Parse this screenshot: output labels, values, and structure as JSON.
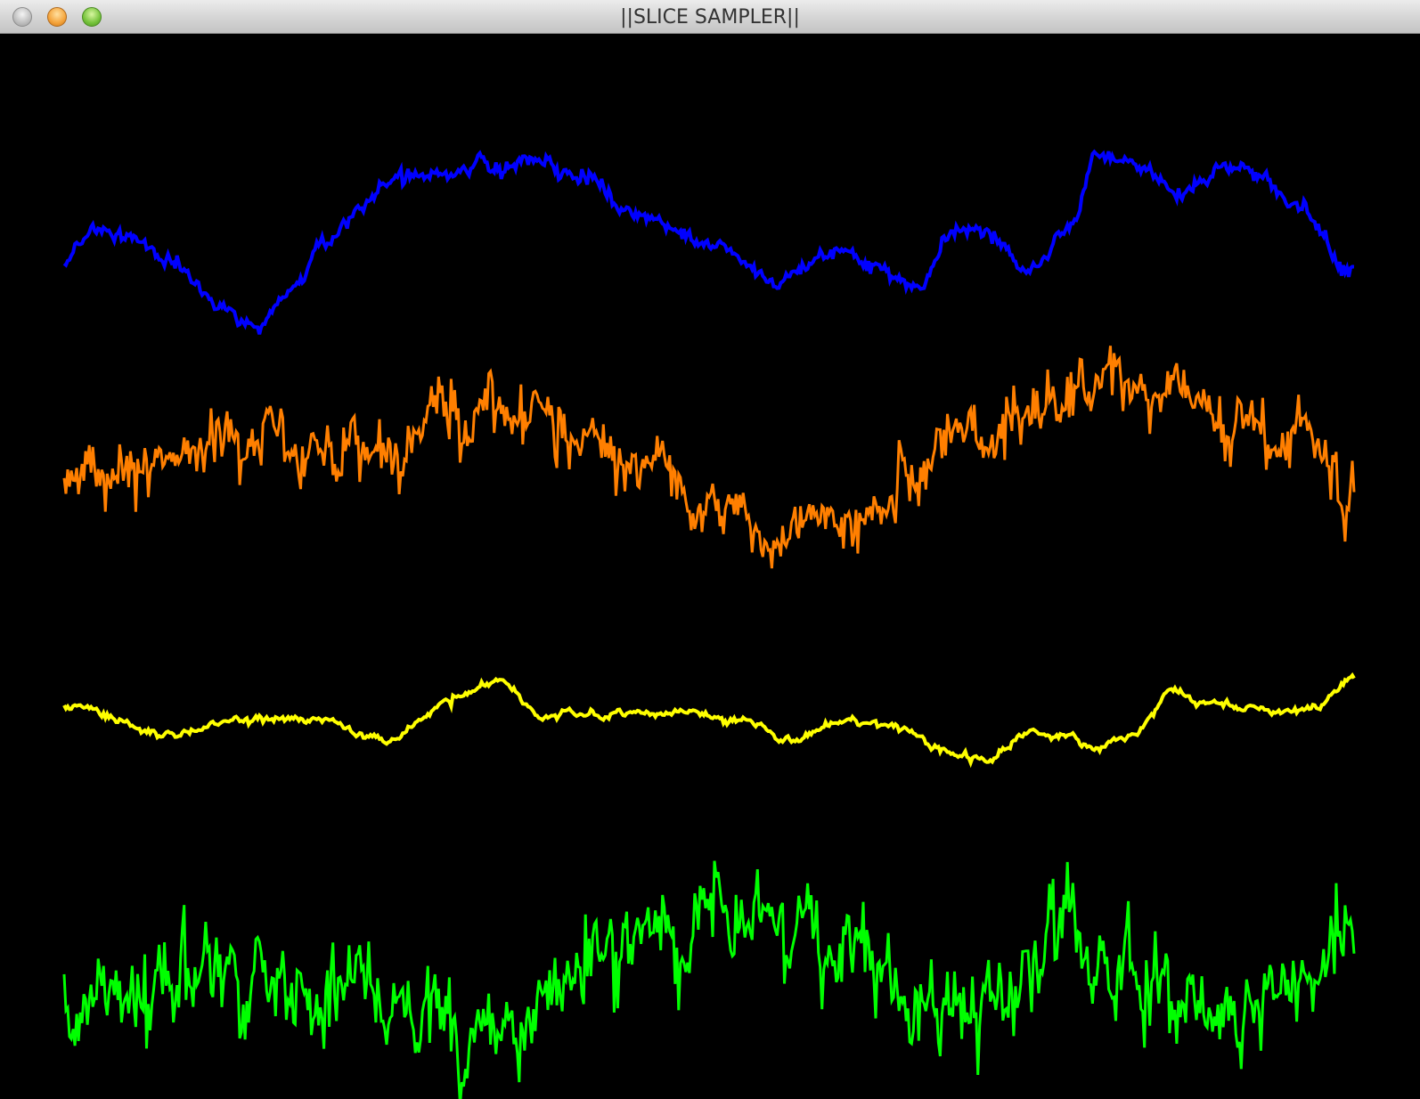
{
  "window": {
    "title": "||SLICE SAMPLER||",
    "controls": [
      "close",
      "minimize",
      "zoom"
    ]
  },
  "chart_data": {
    "type": "line",
    "title": "",
    "xlabel": "",
    "ylabel": "",
    "grid": false,
    "legend": "none",
    "background": "#000000",
    "series": [
      {
        "color": "#0000ff",
        "y_center": 0.19,
        "amplitude": 0.08,
        "anchors": [
          [
            0.0,
            0.35
          ],
          [
            0.02,
            0.55
          ],
          [
            0.05,
            0.5
          ],
          [
            0.08,
            0.35
          ],
          [
            0.12,
            0.1
          ],
          [
            0.15,
            0.0
          ],
          [
            0.18,
            0.2
          ],
          [
            0.2,
            0.5
          ],
          [
            0.23,
            0.65
          ],
          [
            0.25,
            0.8
          ],
          [
            0.28,
            0.85
          ],
          [
            0.33,
            0.9
          ],
          [
            0.37,
            0.95
          ],
          [
            0.4,
            0.85
          ],
          [
            0.45,
            0.6
          ],
          [
            0.5,
            0.45
          ],
          [
            0.55,
            0.25
          ],
          [
            0.6,
            0.4
          ],
          [
            0.63,
            0.35
          ],
          [
            0.66,
            0.2
          ],
          [
            0.69,
            0.55
          ],
          [
            0.72,
            0.5
          ],
          [
            0.75,
            0.3
          ],
          [
            0.78,
            0.55
          ],
          [
            0.8,
            0.95
          ],
          [
            0.83,
            0.9
          ],
          [
            0.86,
            0.75
          ],
          [
            0.9,
            0.9
          ],
          [
            0.93,
            0.85
          ],
          [
            0.96,
            0.65
          ],
          [
            1.0,
            0.3
          ]
        ],
        "noise": 0.05,
        "spike": 0.08,
        "stroke": 4
      },
      {
        "color": "#ff7f00",
        "y_center": 0.405,
        "amplitude": 0.11,
        "anchors": [
          [
            0.0,
            0.45
          ],
          [
            0.05,
            0.5
          ],
          [
            0.1,
            0.55
          ],
          [
            0.15,
            0.6
          ],
          [
            0.2,
            0.55
          ],
          [
            0.25,
            0.6
          ],
          [
            0.3,
            0.7
          ],
          [
            0.35,
            0.75
          ],
          [
            0.4,
            0.62
          ],
          [
            0.45,
            0.5
          ],
          [
            0.5,
            0.35
          ],
          [
            0.55,
            0.2
          ],
          [
            0.6,
            0.3
          ],
          [
            0.63,
            0.3
          ],
          [
            0.66,
            0.5
          ],
          [
            0.7,
            0.6
          ],
          [
            0.73,
            0.65
          ],
          [
            0.77,
            0.72
          ],
          [
            0.8,
            0.88
          ],
          [
            0.83,
            0.82
          ],
          [
            0.86,
            0.78
          ],
          [
            0.9,
            0.72
          ],
          [
            0.95,
            0.6
          ],
          [
            1.0,
            0.35
          ]
        ],
        "noise": 0.12,
        "spike": 0.28,
        "stroke": 3
      },
      {
        "color": "#ffff00",
        "y_center": 0.64,
        "amplitude": 0.045,
        "anchors": [
          [
            0.0,
            0.6
          ],
          [
            0.08,
            0.3
          ],
          [
            0.13,
            0.45
          ],
          [
            0.2,
            0.45
          ],
          [
            0.25,
            0.25
          ],
          [
            0.3,
            0.65
          ],
          [
            0.3,
            0.7
          ],
          [
            0.34,
            0.85
          ],
          [
            0.37,
            0.5
          ],
          [
            0.42,
            0.5
          ],
          [
            0.48,
            0.55
          ],
          [
            0.52,
            0.45
          ],
          [
            0.57,
            0.25
          ],
          [
            0.6,
            0.45
          ],
          [
            0.64,
            0.4
          ],
          [
            0.68,
            0.15
          ],
          [
            0.71,
            0.05
          ],
          [
            0.75,
            0.35
          ],
          [
            0.78,
            0.3
          ],
          [
            0.8,
            0.15
          ],
          [
            0.83,
            0.35
          ],
          [
            0.86,
            0.75
          ],
          [
            0.88,
            0.65
          ],
          [
            0.93,
            0.55
          ],
          [
            0.97,
            0.6
          ],
          [
            1.0,
            0.9
          ]
        ],
        "noise": 0.05,
        "spike": 0.06,
        "stroke": 4
      },
      {
        "color": "#00ff00",
        "y_center": 0.87,
        "amplitude": 0.115,
        "anchors": [
          [
            0.0,
            0.25
          ],
          [
            0.1,
            0.45
          ],
          [
            0.2,
            0.4
          ],
          [
            0.25,
            0.35
          ],
          [
            0.3,
            0.2
          ],
          [
            0.35,
            0.25
          ],
          [
            0.4,
            0.5
          ],
          [
            0.43,
            0.55
          ],
          [
            0.48,
            0.65
          ],
          [
            0.5,
            0.85
          ],
          [
            0.53,
            0.7
          ],
          [
            0.57,
            0.55
          ],
          [
            0.6,
            0.5
          ],
          [
            0.64,
            0.4
          ],
          [
            0.68,
            0.35
          ],
          [
            0.72,
            0.3
          ],
          [
            0.75,
            0.45
          ],
          [
            0.78,
            0.7
          ],
          [
            0.8,
            0.55
          ],
          [
            0.85,
            0.4
          ],
          [
            0.9,
            0.35
          ],
          [
            0.95,
            0.35
          ],
          [
            0.98,
            0.45
          ],
          [
            1.0,
            0.65
          ]
        ],
        "noise": 0.18,
        "spike": 0.35,
        "stroke": 3
      }
    ]
  }
}
